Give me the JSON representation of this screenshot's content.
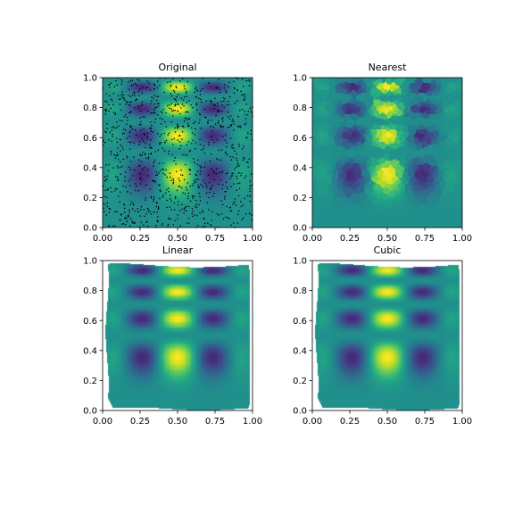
{
  "figure": {
    "background": "#ffffff",
    "colormap": "viridis"
  },
  "chart_data": [
    {
      "type": "heatmap",
      "title": "Original",
      "method": "scattered-samples",
      "show_points": true,
      "point_count": 1000,
      "xlim": [
        0.0,
        1.0
      ],
      "ylim": [
        0.0,
        1.0
      ],
      "xticks": [
        "0.00",
        "0.25",
        "0.50",
        "0.75",
        "1.00"
      ],
      "yticks": [
        "0.0",
        "0.2",
        "0.4",
        "0.6",
        "0.8",
        "1.0"
      ],
      "grid": false
    },
    {
      "type": "heatmap",
      "title": "Nearest",
      "method": "nearest",
      "show_points": false,
      "xlim": [
        0.0,
        1.0
      ],
      "ylim": [
        0.0,
        1.0
      ],
      "xticks": [
        "0.00",
        "0.25",
        "0.50",
        "0.75",
        "1.00"
      ],
      "yticks": [
        "0.0",
        "0.2",
        "0.4",
        "0.6",
        "0.8",
        "1.0"
      ],
      "grid": false
    },
    {
      "type": "heatmap",
      "title": "Linear",
      "method": "linear",
      "show_points": false,
      "convex_hull_only": true,
      "xlim": [
        0.0,
        1.0
      ],
      "ylim": [
        0.0,
        1.0
      ],
      "xticks": [
        "0.00",
        "0.25",
        "0.50",
        "0.75",
        "1.00"
      ],
      "yticks": [
        "0.0",
        "0.2",
        "0.4",
        "0.6",
        "0.8",
        "1.0"
      ],
      "grid": false
    },
    {
      "type": "heatmap",
      "title": "Cubic",
      "method": "cubic",
      "show_points": false,
      "convex_hull_only": true,
      "xlim": [
        0.0,
        1.0
      ],
      "ylim": [
        0.0,
        1.0
      ],
      "xticks": [
        "0.00",
        "0.25",
        "0.50",
        "0.75",
        "1.00"
      ],
      "yticks": [
        "0.0",
        "0.2",
        "0.4",
        "0.6",
        "0.8",
        "1.0"
      ],
      "grid": false
    }
  ]
}
